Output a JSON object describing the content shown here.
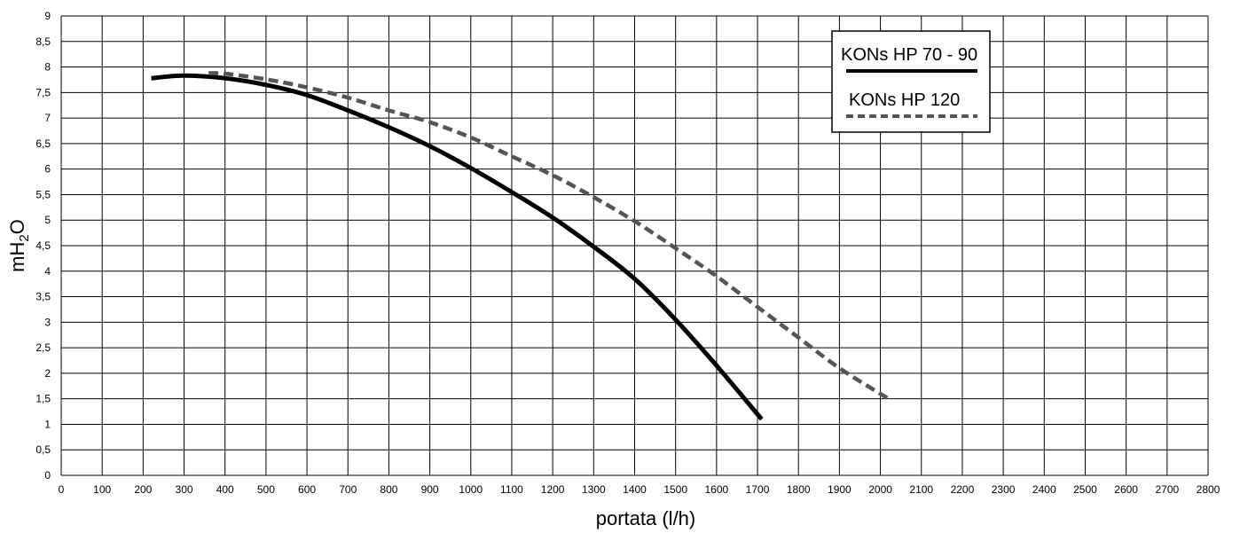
{
  "chart_data": {
    "type": "line",
    "xlabel": "portata (l/h)",
    "ylabel": "mH2O",
    "xlim": [
      0,
      2800
    ],
    "ylim": [
      0,
      9
    ],
    "x_ticks": [
      0,
      100,
      200,
      300,
      400,
      500,
      600,
      700,
      800,
      900,
      1000,
      1100,
      1200,
      1300,
      1400,
      1500,
      1600,
      1700,
      1800,
      1900,
      2000,
      2100,
      2200,
      2300,
      2400,
      2500,
      2600,
      2700,
      2800
    ],
    "y_ticks": [
      0,
      0.5,
      1,
      1.5,
      2,
      2.5,
      3,
      3.5,
      4,
      4.5,
      5,
      5.5,
      6,
      6.5,
      7,
      7.5,
      8,
      8.5,
      9
    ],
    "y_tick_labels": [
      "0",
      "0,5",
      "1",
      "1,5",
      "2",
      "2,5",
      "3",
      "3,5",
      "4",
      "4,5",
      "5",
      "5,5",
      "6",
      "6,5",
      "7",
      "7,5",
      "8",
      "8,5",
      "9"
    ],
    "grid": true,
    "legend_position": "top-right",
    "series": [
      {
        "name": "KONs HP 70 - 90",
        "style": "solid",
        "color": "#000000",
        "x": [
          220,
          300,
          400,
          500,
          600,
          700,
          800,
          900,
          1000,
          1100,
          1200,
          1300,
          1400,
          1500,
          1600,
          1710
        ],
        "y": [
          7.78,
          7.83,
          7.78,
          7.65,
          7.45,
          7.15,
          6.82,
          6.45,
          6.02,
          5.55,
          5.05,
          4.48,
          3.85,
          3.05,
          2.15,
          1.1
        ]
      },
      {
        "name": "KONs HP 120",
        "style": "dashed",
        "color": "#555555",
        "x": [
          360,
          400,
          500,
          600,
          700,
          800,
          900,
          1000,
          1100,
          1200,
          1300,
          1400,
          1500,
          1600,
          1700,
          1800,
          1900,
          2020
        ],
        "y": [
          7.88,
          7.87,
          7.76,
          7.6,
          7.4,
          7.15,
          6.92,
          6.62,
          6.25,
          5.88,
          5.45,
          4.98,
          4.45,
          3.9,
          3.3,
          2.7,
          2.1,
          1.5
        ]
      }
    ]
  }
}
